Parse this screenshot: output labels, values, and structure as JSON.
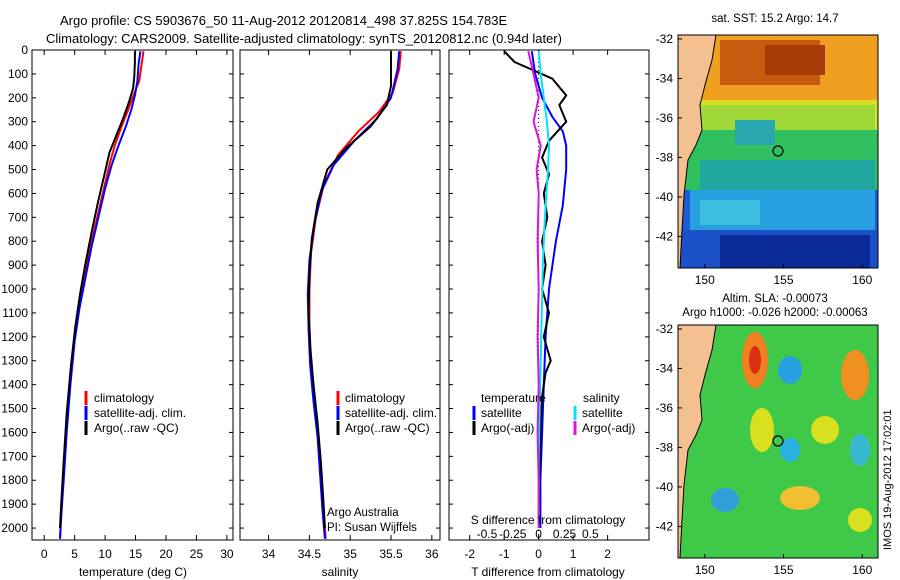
{
  "header": {
    "line1": "Argo profile: CS 5903676_50 11-Aug-2012 20120814_498 37.825S 154.783E",
    "line2": "Climatology: CARS2009. Satellite-adjusted climatology: synTS_20120812.nc (0.94d later)"
  },
  "colors": {
    "climatology": "#ff0000",
    "satellite": "#0000ff",
    "argo": "#000000",
    "salinity_satellite": "#00e5ff",
    "salinity_argo": "#e010e0",
    "land": "#f5c090"
  },
  "legend_profile": {
    "entries": [
      "climatology",
      "satellite-adj. clim.",
      "Argo(..raw -QC)"
    ]
  },
  "legend_diff": {
    "temperature_heading": "temperature",
    "salinity_heading": "salinity",
    "entries": [
      "satellite",
      "Argo(-adj)",
      "satellite",
      "Argo(-adj)"
    ]
  },
  "credits": {
    "line1": "Argo Australia",
    "line2": "PI: Susan Wijffels"
  },
  "map_sst": {
    "title": "sat. SST: 15.2 Argo: 14.7",
    "x_ticks": [
      "150",
      "155",
      "160"
    ],
    "y_ticks": [
      "-32",
      "-34",
      "-36",
      "-38",
      "-40",
      "-42"
    ]
  },
  "map_sla": {
    "title1": "Altim. SLA: -0.00073",
    "title2": "Argo h1000: -0.026 h2000: -0.00063",
    "x_ticks": [
      "150",
      "155",
      "160"
    ],
    "y_ticks": [
      "-32",
      "-34",
      "-36",
      "-38",
      "-40",
      "-42"
    ]
  },
  "stamp": "IMOS 19-Aug-2012 17:02:01",
  "chart_data": [
    {
      "type": "line",
      "panel": "temperature",
      "xlabel": "temperature (deg C)",
      "x_ticks": [
        "0",
        "5",
        "10",
        "15",
        "20",
        "25",
        "30"
      ],
      "xlim": [
        -2,
        31
      ],
      "ylim": [
        2050,
        0
      ],
      "y_ticks": [
        "0",
        "100",
        "200",
        "300",
        "400",
        "500",
        "600",
        "700",
        "800",
        "900",
        "1000",
        "1100",
        "1200",
        "1300",
        "1400",
        "1500",
        "1600",
        "1700",
        "1800",
        "1900",
        "2000"
      ],
      "series": [
        {
          "name": "climatology",
          "points": [
            [
              16.3,
              5
            ],
            [
              16.0,
              60
            ],
            [
              15.6,
              130
            ],
            [
              14.8,
              180
            ],
            [
              13.8,
              250
            ],
            [
              12.7,
              320
            ],
            [
              11.6,
              400
            ],
            [
              10.7,
              480
            ],
            [
              9.8,
              580
            ],
            [
              8.7,
              700
            ],
            [
              7.6,
              820
            ],
            [
              6.6,
              950
            ],
            [
              5.7,
              1080
            ],
            [
              4.9,
              1220
            ],
            [
              4.2,
              1400
            ],
            [
              3.6,
              1600
            ],
            [
              3.1,
              1800
            ],
            [
              2.8,
              1950
            ],
            [
              2.6,
              2045
            ]
          ]
        },
        {
          "name": "satellite-adj. clim.",
          "points": [
            [
              15.8,
              5
            ],
            [
              15.5,
              60
            ],
            [
              15.3,
              130
            ],
            [
              14.9,
              190
            ],
            [
              14.3,
              250
            ],
            [
              13.4,
              320
            ],
            [
              12.2,
              400
            ],
            [
              11.1,
              480
            ],
            [
              10.0,
              580
            ],
            [
              8.9,
              700
            ],
            [
              7.8,
              820
            ],
            [
              6.8,
              950
            ],
            [
              5.8,
              1080
            ],
            [
              5.0,
              1220
            ],
            [
              4.3,
              1400
            ],
            [
              3.7,
              1600
            ],
            [
              3.2,
              1800
            ],
            [
              2.8,
              1950
            ],
            [
              2.6,
              2045
            ]
          ]
        },
        {
          "name": "Argo(..raw -QC)",
          "points": [
            [
              14.9,
              5
            ],
            [
              14.9,
              50
            ],
            [
              14.8,
              110
            ],
            [
              14.6,
              160
            ],
            [
              13.9,
              220
            ],
            [
              12.9,
              290
            ],
            [
              11.5,
              380
            ],
            [
              10.7,
              430
            ],
            [
              9.9,
              520
            ],
            [
              8.8,
              640
            ],
            [
              7.8,
              760
            ],
            [
              6.8,
              890
            ],
            [
              5.9,
              1020
            ],
            [
              5.1,
              1160
            ],
            [
              4.4,
              1320
            ],
            [
              3.7,
              1520
            ],
            [
              3.2,
              1720
            ],
            [
              2.8,
              1900
            ],
            [
              2.6,
              2000
            ]
          ]
        }
      ]
    },
    {
      "type": "line",
      "panel": "salinity",
      "xlabel": "salinity",
      "x_ticks": [
        "34",
        "34.5",
        "35",
        "35.5",
        "36"
      ],
      "xlim": [
        33.65,
        36.1
      ],
      "ylim": [
        2050,
        0
      ],
      "series": [
        {
          "name": "climatology",
          "points": [
            [
              35.62,
              5
            ],
            [
              35.6,
              80
            ],
            [
              35.52,
              180
            ],
            [
              35.35,
              260
            ],
            [
              35.1,
              340
            ],
            [
              34.85,
              440
            ],
            [
              34.68,
              560
            ],
            [
              34.58,
              700
            ],
            [
              34.52,
              850
            ],
            [
              34.5,
              1000
            ],
            [
              34.5,
              1150
            ],
            [
              34.52,
              1300
            ],
            [
              34.56,
              1450
            ],
            [
              34.6,
              1600
            ],
            [
              34.64,
              1750
            ],
            [
              34.67,
              1900
            ],
            [
              34.7,
              2045
            ]
          ]
        },
        {
          "name": "satellite-adj. clim.",
          "points": [
            [
              35.6,
              5
            ],
            [
              35.58,
              80
            ],
            [
              35.5,
              200
            ],
            [
              35.32,
              290
            ],
            [
              35.05,
              380
            ],
            [
              34.8,
              480
            ],
            [
              34.65,
              590
            ],
            [
              34.56,
              730
            ],
            [
              34.5,
              880
            ],
            [
              34.48,
              1020
            ],
            [
              34.49,
              1170
            ],
            [
              34.51,
              1320
            ],
            [
              34.55,
              1470
            ],
            [
              34.6,
              1620
            ],
            [
              34.63,
              1770
            ],
            [
              34.66,
              1920
            ],
            [
              34.69,
              2045
            ]
          ]
        },
        {
          "name": "Argo(..raw -QC)",
          "points": [
            [
              35.5,
              5
            ],
            [
              35.5,
              150
            ],
            [
              35.45,
              230
            ],
            [
              35.25,
              320
            ],
            [
              34.95,
              410
            ],
            [
              34.72,
              500
            ],
            [
              34.6,
              640
            ],
            [
              34.53,
              790
            ],
            [
              34.5,
              940
            ],
            [
              34.49,
              1090
            ],
            [
              34.51,
              1240
            ],
            [
              34.55,
              1400
            ],
            [
              34.6,
              1560
            ],
            [
              34.64,
              1720
            ],
            [
              34.67,
              1880
            ],
            [
              34.69,
              2000
            ]
          ]
        }
      ]
    },
    {
      "type": "line",
      "panel": "difference",
      "xlabel": "T difference from climatology",
      "x2label": "S difference from climatology",
      "x_ticks": [
        "-2",
        "-1",
        "0",
        "1",
        "2"
      ],
      "x2_ticks": [
        "-0.5",
        "-0.25",
        "0",
        "0.25",
        "0.5"
      ],
      "xlim": [
        -2.6,
        3.2
      ],
      "ylim": [
        2050,
        0
      ],
      "series": [
        {
          "name": "satellite",
          "variable": "temperature",
          "points": [
            [
              -0.2,
              5
            ],
            [
              -0.1,
              100
            ],
            [
              0.1,
              200
            ],
            [
              0.4,
              280
            ],
            [
              0.7,
              340
            ],
            [
              0.8,
              400
            ],
            [
              0.8,
              500
            ],
            [
              0.7,
              650
            ],
            [
              0.5,
              800
            ],
            [
              0.3,
              1000
            ],
            [
              0.2,
              1200
            ],
            [
              0.15,
              1400
            ],
            [
              0.1,
              1600
            ],
            [
              0.05,
              1800
            ],
            [
              0.05,
              2000
            ]
          ]
        },
        {
          "name": "Argo(-adj)",
          "variable": "temperature",
          "points": [
            [
              -1.0,
              5
            ],
            [
              -0.7,
              50
            ],
            [
              0.4,
              120
            ],
            [
              0.8,
              190
            ],
            [
              0.6,
              230
            ],
            [
              0.8,
              300
            ],
            [
              0.3,
              380
            ],
            [
              0.1,
              450
            ],
            [
              0.3,
              520
            ],
            [
              0.15,
              600
            ],
            [
              0.25,
              700
            ],
            [
              0.1,
              800
            ],
            [
              0.2,
              900
            ],
            [
              0.1,
              1000
            ],
            [
              0.3,
              1100
            ],
            [
              0.15,
              1200
            ],
            [
              0.35,
              1300
            ],
            [
              0.2,
              1350
            ],
            [
              0.1,
              1450
            ],
            [
              0.05,
              1600
            ],
            [
              0.02,
              1800
            ],
            [
              0.0,
              2000
            ]
          ]
        },
        {
          "name": "satellite",
          "variable": "salinity",
          "points": [
            [
              0.0,
              5
            ],
            [
              0.02,
              100
            ],
            [
              0.05,
              200
            ],
            [
              0.08,
              300
            ],
            [
              0.1,
              400
            ],
            [
              0.09,
              500
            ],
            [
              0.06,
              700
            ],
            [
              0.04,
              900
            ],
            [
              0.03,
              1100
            ],
            [
              0.02,
              1300
            ],
            [
              0.01,
              1500
            ],
            [
              0.0,
              1700
            ],
            [
              0.0,
              2000
            ]
          ]
        },
        {
          "name": "Argo(-adj)",
          "variable": "salinity",
          "points": [
            [
              -0.1,
              5
            ],
            [
              -0.05,
              100
            ],
            [
              0.0,
              200
            ],
            [
              -0.05,
              300
            ],
            [
              0.02,
              400
            ],
            [
              -0.02,
              500
            ],
            [
              0.0,
              600
            ],
            [
              -0.01,
              800
            ],
            [
              0.0,
              1000
            ],
            [
              -0.01,
              1200
            ],
            [
              0.0,
              1400
            ],
            [
              -0.01,
              1600
            ],
            [
              0.0,
              1800
            ],
            [
              0.0,
              2000
            ]
          ]
        }
      ]
    }
  ]
}
